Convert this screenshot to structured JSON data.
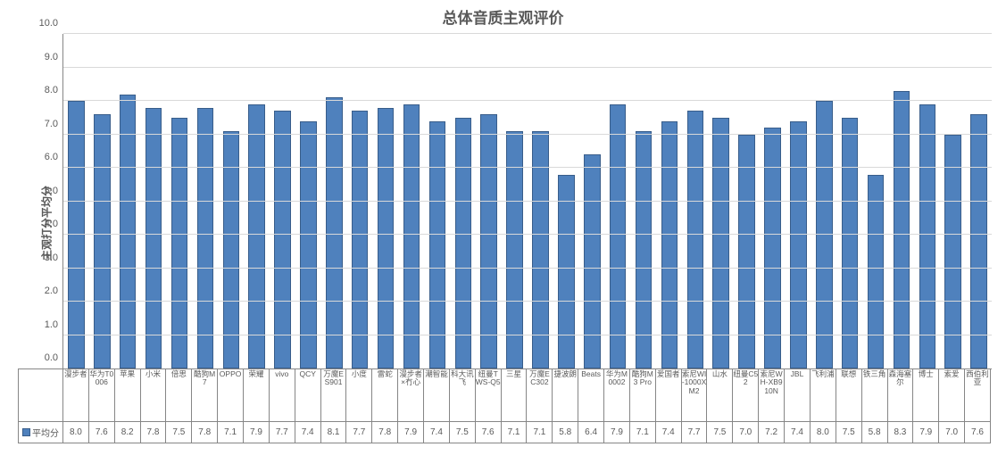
{
  "chart": {
    "type": "bar",
    "title": "总体音质主观评价",
    "title_fontsize": 17,
    "y_axis_label": "主观打分平均分",
    "label_fontsize": 12,
    "ylim": [
      0,
      10
    ],
    "ytick_step": 1.0,
    "y_ticks": [
      "0.0",
      "1.0",
      "2.0",
      "3.0",
      "4.0",
      "5.0",
      "6.0",
      "7.0",
      "8.0",
      "9.0",
      "10.0"
    ],
    "background_color": "#ffffff",
    "grid_color": "#d9d9d9",
    "axis_color": "#868686",
    "bar_color": "#4f81bd",
    "bar_border_color": "#385d8a",
    "bar_width": 0.64,
    "series_name": "平均分",
    "categories": [
      "漫步者",
      "华为T0006",
      "苹果",
      "小米",
      "倍思",
      "酷狗M7",
      "OPPO",
      "荣耀",
      "vivo",
      "QCY",
      "万魔ES901",
      "小度",
      "雷蛇",
      "漫步者×冇心",
      "潮智能",
      "科大讯飞",
      "纽曼TWS-Q5",
      "三星",
      "万魔EC302",
      "捷波朗",
      "Beats",
      "华为M0002",
      "酷狗M3 Pro",
      "爱国者",
      "索尼WI-1000XM2",
      "山水",
      "纽曼C52",
      "索尼WH-XB910N",
      "JBL",
      "飞利浦",
      "联想",
      "铁三角",
      "森海塞尔",
      "博士",
      "索爱",
      "西伯利亚"
    ],
    "values": [
      8.0,
      7.6,
      8.2,
      7.8,
      7.5,
      7.8,
      7.1,
      7.9,
      7.7,
      7.4,
      8.1,
      7.7,
      7.8,
      7.9,
      7.4,
      7.5,
      7.6,
      7.1,
      7.1,
      5.8,
      6.4,
      7.9,
      7.1,
      7.4,
      7.7,
      7.5,
      7.0,
      7.2,
      7.4,
      8.0,
      7.5,
      5.8,
      8.3,
      7.9,
      7.0,
      7.6
    ]
  }
}
